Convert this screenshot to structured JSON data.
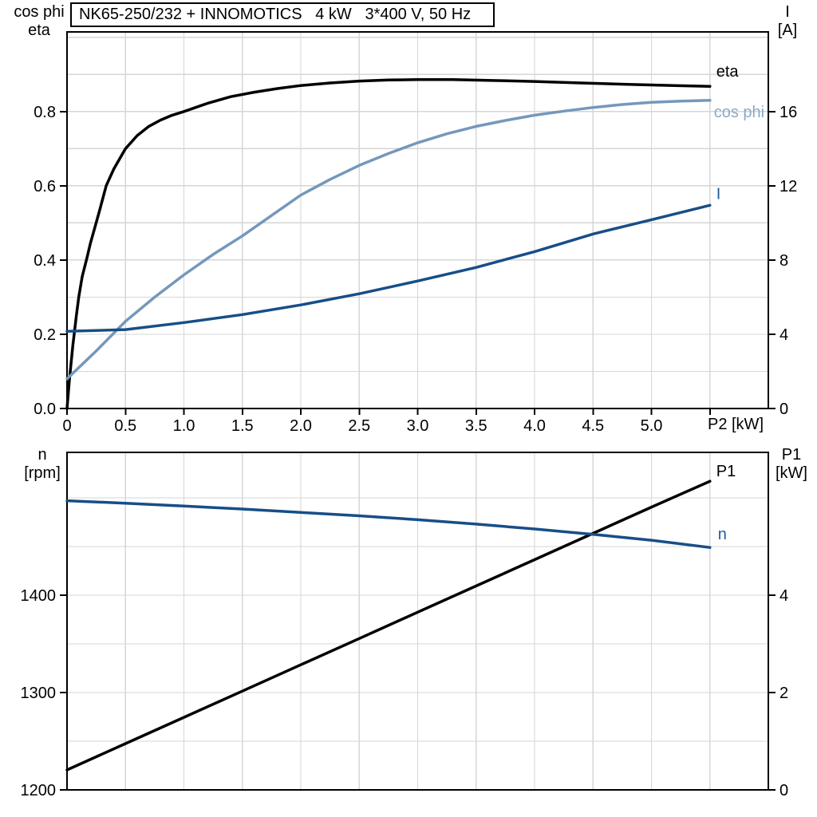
{
  "colors": {
    "background": "#ffffff",
    "grid": "#d6d6d6",
    "frame": "#000000",
    "black_curve": "#000000",
    "light_blue_curve": "#7498bb",
    "light_blue_label": "#8aa9c8",
    "dark_blue_curve": "#174e87",
    "dark_blue_label": "#1d5c9e"
  },
  "chart_data": [
    {
      "type": "line",
      "title": "NK65-250/232 + INNOMOTICS   4 kW   3*400 V, 50 Hz",
      "x_axis": {
        "unit_label": "P2 [kW]",
        "min": 0,
        "max": 6.0,
        "grid_values": [
          0.5,
          1.0,
          1.5,
          2.0,
          2.5,
          3.0,
          3.5,
          4.0,
          4.5,
          5.0,
          5.5
        ],
        "tick_values": [
          0,
          0.5,
          1.0,
          1.5,
          2.0,
          2.5,
          3.0,
          3.5,
          4.0,
          4.5,
          5.0,
          5.5
        ],
        "tick_labels": [
          "0",
          "0.5",
          "1.0",
          "1.5",
          "2.0",
          "2.5",
          "3.0",
          "3.5",
          "4.0",
          "4.5",
          "5.0",
          ""
        ]
      },
      "y_left": {
        "labels": [
          "cos phi",
          "eta"
        ],
        "min": 0,
        "max": 1.0145,
        "grid_values": [
          0.1,
          0.2,
          0.3,
          0.4,
          0.5,
          0.6,
          0.7,
          0.8,
          0.9,
          1.0
        ],
        "tick_values": [
          0.0,
          0.2,
          0.4,
          0.6,
          0.8
        ],
        "tick_labels": [
          "0.0",
          "0.2",
          "0.4",
          "0.6",
          "0.8"
        ]
      },
      "y_right": {
        "labels": [
          "I",
          "[A]"
        ],
        "min": 0,
        "max": 20.29,
        "grid_values": [],
        "tick_values": [
          0,
          4,
          8,
          12,
          16
        ],
        "tick_labels": [
          "0",
          "4",
          "8",
          "12",
          "16"
        ]
      },
      "series": [
        {
          "name": "eta",
          "axis": "left",
          "color": "#000000",
          "label_color": "#000000",
          "points": [
            [
              0,
              0
            ],
            [
              0.02,
              0.075
            ],
            [
              0.05,
              0.17
            ],
            [
              0.08,
              0.25
            ],
            [
              0.1,
              0.3
            ],
            [
              0.13,
              0.355
            ],
            [
              0.17,
              0.405
            ],
            [
              0.2,
              0.445
            ],
            [
              0.24,
              0.49
            ],
            [
              0.28,
              0.535
            ],
            [
              0.335,
              0.6
            ],
            [
              0.4,
              0.645
            ],
            [
              0.5,
              0.7
            ],
            [
              0.6,
              0.735
            ],
            [
              0.7,
              0.76
            ],
            [
              0.8,
              0.777
            ],
            [
              0.9,
              0.79
            ],
            [
              1,
              0.8
            ],
            [
              1.2,
              0.822
            ],
            [
              1.4,
              0.84
            ],
            [
              1.6,
              0.852
            ],
            [
              1.8,
              0.862
            ],
            [
              2,
              0.87
            ],
            [
              2.25,
              0.877
            ],
            [
              2.5,
              0.882
            ],
            [
              2.75,
              0.885
            ],
            [
              3,
              0.886
            ],
            [
              3.3,
              0.886
            ],
            [
              3.6,
              0.884
            ],
            [
              4,
              0.881
            ],
            [
              4.4,
              0.877
            ],
            [
              4.8,
              0.873
            ],
            [
              5.2,
              0.87
            ],
            [
              5.5,
              0.868
            ]
          ]
        },
        {
          "name": "cos phi",
          "axis": "left",
          "color": "#7498bb",
          "label_color": "#8aa9c8",
          "points": [
            [
              0,
              0.08
            ],
            [
              0.25,
              0.155
            ],
            [
              0.5,
              0.235
            ],
            [
              0.75,
              0.3
            ],
            [
              1,
              0.36
            ],
            [
              1.25,
              0.415
            ],
            [
              1.5,
              0.465
            ],
            [
              1.75,
              0.52
            ],
            [
              2,
              0.575
            ],
            [
              2.25,
              0.617
            ],
            [
              2.5,
              0.655
            ],
            [
              2.75,
              0.687
            ],
            [
              3,
              0.716
            ],
            [
              3.25,
              0.74
            ],
            [
              3.5,
              0.76
            ],
            [
              3.75,
              0.776
            ],
            [
              4,
              0.79
            ],
            [
              4.25,
              0.801
            ],
            [
              4.5,
              0.811
            ],
            [
              4.75,
              0.819
            ],
            [
              5,
              0.825
            ],
            [
              5.25,
              0.828
            ],
            [
              5.5,
              0.83
            ]
          ]
        },
        {
          "name": "I",
          "axis": "right",
          "color": "#174e87",
          "label_color": "#1d5c9e",
          "points": [
            [
              0,
              4.16
            ],
            [
              0.5,
              4.25
            ],
            [
              1,
              4.63
            ],
            [
              1.5,
              5.06
            ],
            [
              2,
              5.58
            ],
            [
              2.5,
              6.18
            ],
            [
              3,
              6.87
            ],
            [
              3.5,
              7.6
            ],
            [
              4,
              8.45
            ],
            [
              4.5,
              9.4
            ],
            [
              5,
              10.17
            ],
            [
              5.5,
              10.95
            ]
          ]
        }
      ]
    },
    {
      "type": "line",
      "title": "",
      "x_axis": {
        "unit_label": "",
        "min": 0,
        "max": 6.0,
        "grid_values": [
          0.5,
          1.0,
          1.5,
          2.0,
          2.5,
          3.0,
          3.5,
          4.0,
          4.5,
          5.0,
          5.5
        ],
        "tick_values": [],
        "tick_labels": []
      },
      "y_left": {
        "labels": [
          "n",
          "[rpm]"
        ],
        "min": 1200,
        "max": 1546.7,
        "grid_values": [],
        "tick_values": [
          1200,
          1300,
          1400
        ],
        "tick_labels": [
          "1200",
          "1300",
          "1400"
        ]
      },
      "y_right": {
        "labels": [
          "P1",
          "[kW]"
        ],
        "min": 0,
        "max": 6.934,
        "grid_values": [
          1,
          2,
          3,
          4,
          5,
          6
        ],
        "tick_values": [
          0,
          2,
          4
        ],
        "tick_labels": [
          "0",
          "2",
          "4"
        ]
      },
      "series": [
        {
          "name": "P1",
          "axis": "right",
          "color": "#000000",
          "label_color": "#000000",
          "points": [
            [
              0,
              0.41
            ],
            [
              0.5,
              0.95
            ],
            [
              1,
              1.49
            ],
            [
              1.5,
              2.03
            ],
            [
              2,
              2.57
            ],
            [
              2.5,
              3.11
            ],
            [
              3,
              3.65
            ],
            [
              3.5,
              4.19
            ],
            [
              4,
              4.73
            ],
            [
              4.5,
              5.27
            ],
            [
              5,
              5.81
            ],
            [
              5.5,
              6.34
            ]
          ]
        },
        {
          "name": "n",
          "axis": "left",
          "color": "#174e87",
          "label_color": "#1d5c9e",
          "points": [
            [
              0,
              1497
            ],
            [
              0.5,
              1494.5
            ],
            [
              1,
              1491.5
            ],
            [
              1.5,
              1488.5
            ],
            [
              2,
              1485
            ],
            [
              2.5,
              1481.5
            ],
            [
              3,
              1477.5
            ],
            [
              3.5,
              1473
            ],
            [
              4,
              1468
            ],
            [
              4.5,
              1462.5
            ],
            [
              5,
              1456.5
            ],
            [
              5.5,
              1449
            ]
          ]
        }
      ]
    }
  ]
}
